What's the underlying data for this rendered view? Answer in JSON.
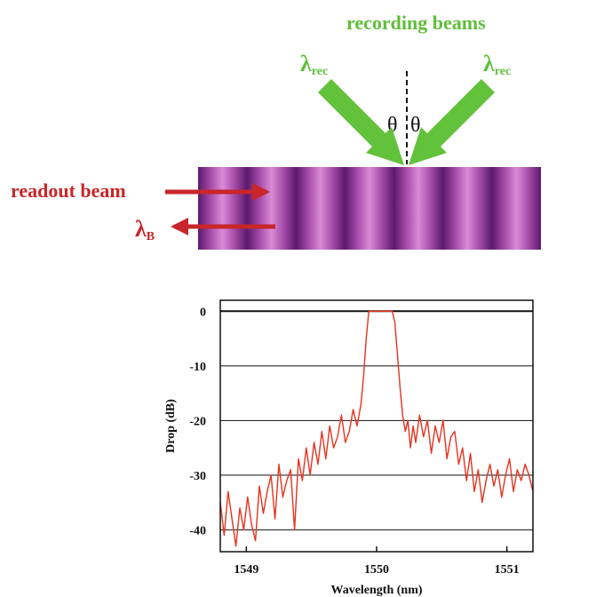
{
  "diagram": {
    "title": "recording beams",
    "lambda_rec_left": "λ",
    "lambda_rec_left_sub": "rec",
    "lambda_rec_right": "λ",
    "lambda_rec_right_sub": "rec",
    "theta_left": "θ",
    "theta_right": "θ",
    "readout_label": "readout beam",
    "lambda_b": "λ",
    "lambda_b_sub": "B",
    "colors": {
      "recording": "#63c23b",
      "readout": "#c8262a",
      "grating_dark": "#5a1a6e",
      "grating_light": "#d98bd6"
    }
  },
  "chart_data": {
    "type": "line",
    "xlabel": "Wavelength (nm)",
    "ylabel": "Drop (dB)",
    "xlim": [
      1548.8,
      1551.2
    ],
    "ylim": [
      -44,
      2
    ],
    "x_ticks": [
      1549,
      1550,
      1551
    ],
    "x_tick_labels": [
      "1549",
      "1550",
      "1551"
    ],
    "y_ticks": [
      0,
      -10,
      -20,
      -30,
      -40
    ],
    "y_tick_labels": [
      "0",
      "-10",
      "-20",
      "-30",
      "-40"
    ],
    "grid": "horizontal",
    "series": [
      {
        "color": "#e5331f",
        "x": [
          1548.8,
          1548.83,
          1548.86,
          1548.89,
          1548.92,
          1548.95,
          1548.98,
          1549.01,
          1549.04,
          1549.07,
          1549.1,
          1549.13,
          1549.16,
          1549.19,
          1549.22,
          1549.25,
          1549.28,
          1549.31,
          1549.34,
          1549.37,
          1549.4,
          1549.43,
          1549.46,
          1549.49,
          1549.52,
          1549.55,
          1549.58,
          1549.61,
          1549.64,
          1549.67,
          1549.7,
          1549.73,
          1549.76,
          1549.79,
          1549.82,
          1549.85,
          1549.88,
          1549.9,
          1549.92,
          1549.94,
          1549.96,
          1549.98,
          1550.0,
          1550.02,
          1550.04,
          1550.06,
          1550.08,
          1550.1,
          1550.12,
          1550.14,
          1550.16,
          1550.18,
          1550.2,
          1550.22,
          1550.24,
          1550.26,
          1550.28,
          1550.3,
          1550.33,
          1550.36,
          1550.39,
          1550.42,
          1550.45,
          1550.48,
          1550.51,
          1550.54,
          1550.57,
          1550.6,
          1550.63,
          1550.66,
          1550.69,
          1550.72,
          1550.75,
          1550.78,
          1550.81,
          1550.84,
          1550.87,
          1550.9,
          1550.93,
          1550.96,
          1550.99,
          1551.02,
          1551.05,
          1551.08,
          1551.11,
          1551.14,
          1551.17,
          1551.2
        ],
        "y": [
          -35,
          -41,
          -33,
          -38,
          -43,
          -36,
          -40,
          -34,
          -39,
          -42,
          -32,
          -37,
          -33,
          -30,
          -38,
          -28,
          -34,
          -31,
          -29,
          -40,
          -27,
          -31,
          -25,
          -30,
          -24,
          -28,
          -22,
          -27,
          -21,
          -25,
          -23,
          -19,
          -24,
          -22,
          -18,
          -21,
          -17,
          -12,
          -5,
          0,
          0,
          0,
          0,
          0,
          0,
          0,
          0,
          0,
          0,
          -2,
          -8,
          -14,
          -19,
          -22,
          -20,
          -25,
          -21,
          -24,
          -19,
          -23,
          -20,
          -26,
          -21,
          -24,
          -20,
          -27,
          -23,
          -22,
          -28,
          -25,
          -31,
          -26,
          -33,
          -29,
          -35,
          -31,
          -28,
          -32,
          -29,
          -34,
          -30,
          -27,
          -33,
          -29,
          -31,
          -28,
          -30,
          -33
        ]
      }
    ]
  }
}
